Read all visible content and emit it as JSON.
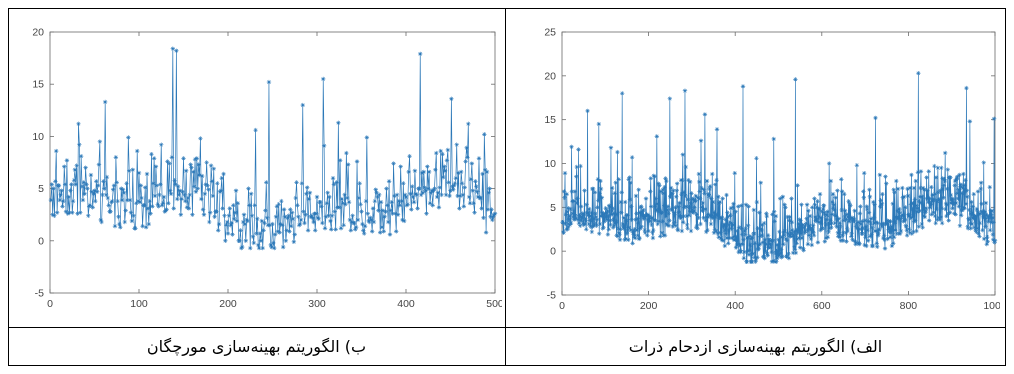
{
  "captions": {
    "left": "ب) الگوریتم بهینه‌سازی مورچگان",
    "right": "الف) الگوریتم بهینه‌سازی ازدحام ذرات"
  },
  "colors": {
    "series": "#2b78b8",
    "axis": "#6a6a6a"
  },
  "chart_data": [
    {
      "type": "line",
      "marker": "asterisk",
      "xlim": [
        0,
        500
      ],
      "ylim": [
        -5,
        20
      ],
      "xticks": [
        0,
        100,
        200,
        300,
        400,
        500
      ],
      "yticks": [
        -5,
        0,
        5,
        10,
        15,
        20
      ],
      "series": [
        {
          "count": 500,
          "range": [
            -0.7,
            18.4
          ],
          "peaks": [
            [
              61,
              13.3
            ],
            [
              137,
              18.4
            ],
            [
              141,
              18.2
            ],
            [
              245,
              15.2
            ],
            [
              283,
              13.0
            ],
            [
              415,
              17.9
            ],
            [
              487,
              10.2
            ]
          ]
        }
      ]
    },
    {
      "type": "line",
      "marker": "asterisk",
      "xlim": [
        0,
        1000
      ],
      "ylim": [
        -5,
        25
      ],
      "xticks": [
        0,
        200,
        400,
        600,
        800,
        1000
      ],
      "yticks": [
        -5,
        0,
        5,
        10,
        15,
        20,
        25
      ],
      "series": [
        {
          "count": 1000,
          "range": [
            -1.2,
            20.3
          ],
          "peaks": [
            [
              138,
              18.0
            ],
            [
              248,
              17.4
            ],
            [
              283,
              18.3
            ],
            [
              417,
              18.8
            ],
            [
              538,
              19.6
            ],
            [
              822,
              20.3
            ],
            [
              933,
              18.6
            ],
            [
              997,
              15.1
            ]
          ]
        }
      ]
    }
  ]
}
